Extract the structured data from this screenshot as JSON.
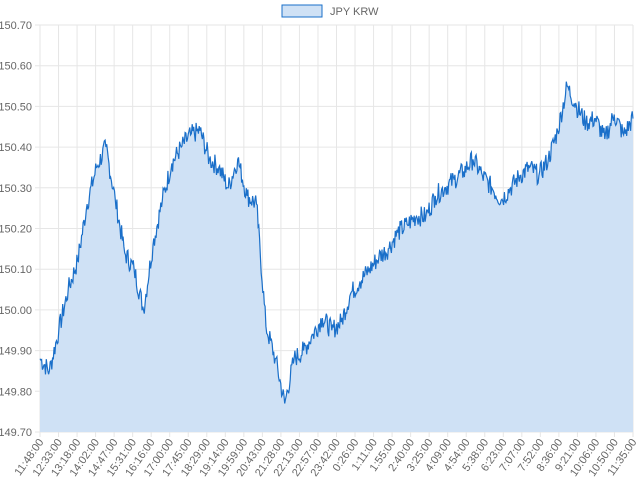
{
  "chart_data": {
    "type": "area",
    "title": "",
    "xlabel": "",
    "ylabel": "",
    "ylim": [
      149.7,
      150.7
    ],
    "y_ticks": [
      "150.70",
      "150.60",
      "150.50",
      "150.40",
      "150.30",
      "150.20",
      "150.10",
      "150.00",
      "149.90",
      "149.80",
      "149.70"
    ],
    "x_tick_labels": [
      "11:48:00",
      "12:33:00",
      "13:18:00",
      "14:02:00",
      "14:47:00",
      "15:31:00",
      "16:16:00",
      "17:00:00",
      "17:45:00",
      "18:29:00",
      "19:14:00",
      "19:59:00",
      "20:43:00",
      "21:28:00",
      "22:13:00",
      "22:57:00",
      "23:42:00",
      "0:26:00",
      "1:11:00",
      "1:55:00",
      "2:40:00",
      "3:25:00",
      "4:09:00",
      "4:54:00",
      "5:38:00",
      "6:23:00",
      "7:07:00",
      "7:52:00",
      "8:36:00",
      "9:21:00",
      "10:06:00",
      "10:50:00",
      "11:35:00"
    ],
    "grid": true,
    "legend": "top-center",
    "series": [
      {
        "name": "JPY KRW",
        "color": "#1a6fc9",
        "fill": "#cfe1f5",
        "x": [
          "11:48:00",
          "12:33:00",
          "13:18:00",
          "13:40:00",
          "14:02:00",
          "14:25:00",
          "14:47:00",
          "15:09:00",
          "15:31:00",
          "15:54:00",
          "16:16:00",
          "16:38:00",
          "17:00:00",
          "17:23:00",
          "17:45:00",
          "18:07:00",
          "18:29:00",
          "18:52:00",
          "19:14:00",
          "19:36:00",
          "19:59:00",
          "20:21:00",
          "20:43:00",
          "21:06:00",
          "21:28:00",
          "21:50:00",
          "22:13:00",
          "22:35:00",
          "22:57:00",
          "23:20:00",
          "23:42:00",
          "0:04:00",
          "0:26:00",
          "0:48:00",
          "1:11:00",
          "1:33:00",
          "1:55:00",
          "2:18:00",
          "2:40:00",
          "3:03:00",
          "3:25:00",
          "3:47:00",
          "4:09:00",
          "4:32:00",
          "4:54:00",
          "5:16:00",
          "5:38:00",
          "6:01:00",
          "6:23:00",
          "6:45:00",
          "7:07:00",
          "7:30:00",
          "7:52:00",
          "8:14:00",
          "8:36:00",
          "8:59:00",
          "9:21:00",
          "9:43:00",
          "10:06:00",
          "10:28:00",
          "10:50:00",
          "11:13:00",
          "11:35:00",
          "11:45:00"
        ],
        "values": [
          149.88,
          149.85,
          149.95,
          150.05,
          150.12,
          150.26,
          150.35,
          150.4,
          150.27,
          150.14,
          150.1,
          150.0,
          150.16,
          150.27,
          150.36,
          150.4,
          150.43,
          150.44,
          150.37,
          150.35,
          150.3,
          150.37,
          150.28,
          150.26,
          149.96,
          149.88,
          149.77,
          149.88,
          149.9,
          149.94,
          149.98,
          149.95,
          149.97,
          150.04,
          150.07,
          150.1,
          150.13,
          150.15,
          150.19,
          150.21,
          150.23,
          150.23,
          150.28,
          150.3,
          150.32,
          150.34,
          150.37,
          150.33,
          150.3,
          150.27,
          150.3,
          150.33,
          150.35,
          150.33,
          150.37,
          150.44,
          150.55,
          150.5,
          150.46,
          150.47,
          150.42,
          150.48,
          150.43,
          150.47
        ]
      }
    ]
  }
}
